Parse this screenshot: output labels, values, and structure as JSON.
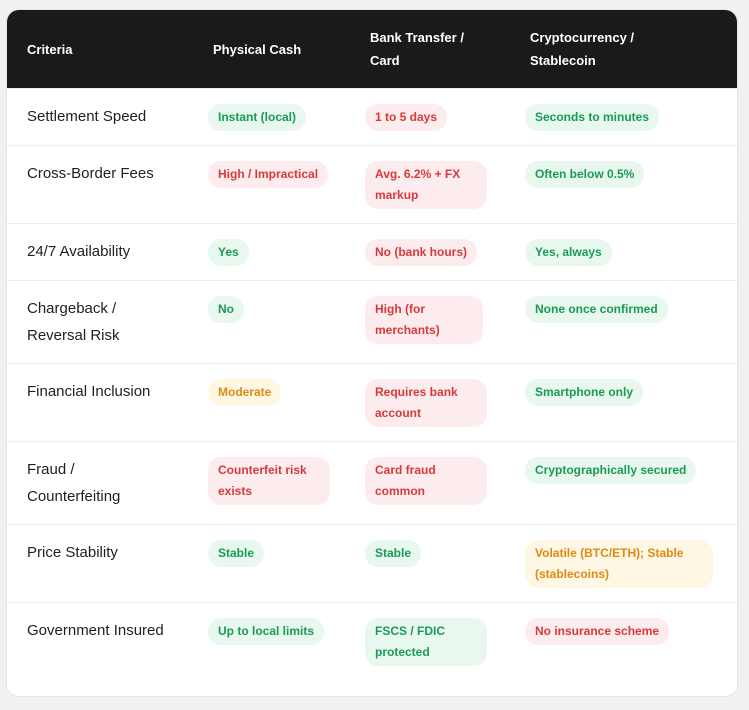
{
  "table": {
    "headers": [
      "Criteria",
      "Physical Cash",
      "Bank Transfer / Card",
      "Cryptocurrency / Stablecoin"
    ],
    "rows": [
      {
        "criteria": "Settlement Speed",
        "cash": {
          "text": "Instant (local)",
          "status": "green"
        },
        "bank": {
          "text": "1 to 5 days",
          "status": "red"
        },
        "crypto": {
          "text": "Seconds to minutes",
          "status": "green"
        }
      },
      {
        "criteria": "Cross-Border Fees",
        "cash": {
          "text": "High / Impractical",
          "status": "red"
        },
        "bank": {
          "text": "Avg. 6.2% + FX markup",
          "status": "red"
        },
        "crypto": {
          "text": "Often below 0.5%",
          "status": "green"
        }
      },
      {
        "criteria": "24/7 Availability",
        "cash": {
          "text": "Yes",
          "status": "green"
        },
        "bank": {
          "text": "No (bank hours)",
          "status": "red"
        },
        "crypto": {
          "text": "Yes, always",
          "status": "green"
        }
      },
      {
        "criteria": "Chargeback / Reversal Risk",
        "cash": {
          "text": "No",
          "status": "green"
        },
        "bank": {
          "text": "High (for merchants)",
          "status": "red"
        },
        "crypto": {
          "text": "None once confirmed",
          "status": "green"
        }
      },
      {
        "criteria": "Financial Inclusion",
        "cash": {
          "text": "Moderate",
          "status": "yellow"
        },
        "bank": {
          "text": "Requires bank account",
          "status": "red"
        },
        "crypto": {
          "text": "Smartphone only",
          "status": "green"
        }
      },
      {
        "criteria": "Fraud / Counterfeiting",
        "cash": {
          "text": "Counterfeit risk exists",
          "status": "red"
        },
        "bank": {
          "text": "Card fraud common",
          "status": "red"
        },
        "crypto": {
          "text": "Cryptographically secured",
          "status": "green"
        }
      },
      {
        "criteria": "Price Stability",
        "cash": {
          "text": "Stable",
          "status": "green"
        },
        "bank": {
          "text": "Stable",
          "status": "green"
        },
        "crypto": {
          "text": "Volatile (BTC/ETH); Stable (stablecoins)",
          "status": "yellow"
        }
      },
      {
        "criteria": "Government Insured",
        "cash": {
          "text": "Up to local limits",
          "status": "green"
        },
        "bank": {
          "text": "FSCS / FDIC protected",
          "status": "green"
        },
        "crypto": {
          "text": "No insurance scheme",
          "status": "red"
        }
      }
    ]
  },
  "colors": {
    "header_bg": "#1a1a1a",
    "green_bg": "#e9f8ef",
    "green_text": "#1a9a56",
    "red_bg": "#fdeced",
    "red_text": "#d63a3a",
    "yellow_bg": "#fef7e4",
    "yellow_text": "#e08a12"
  }
}
